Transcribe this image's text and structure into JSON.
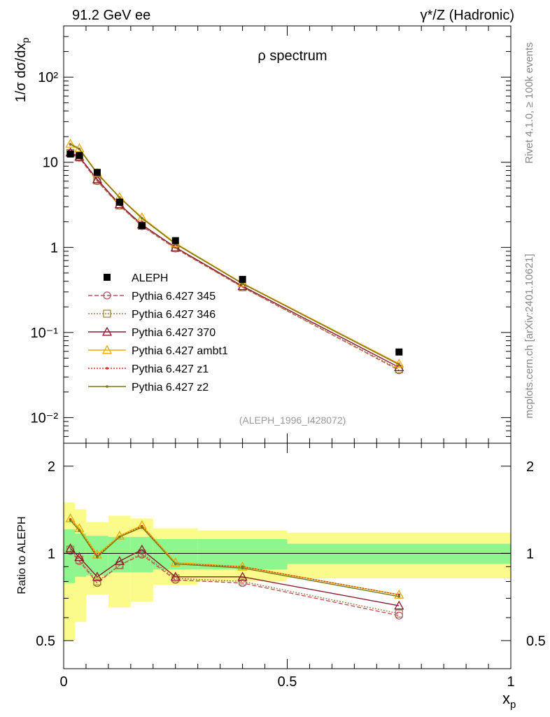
{
  "header": {
    "left": "91.2 GeV ee",
    "right_prefix": "γ*/Z (Hadronic)"
  },
  "side_text": {
    "rivet": "Rivet 4.1.0, ≥ 100k events",
    "mcplots": "mcplots.cern.ch [arXiv:2401.10621]"
  },
  "chart_data": [
    {
      "type": "line",
      "panel": "main",
      "title": "ρ spectrum",
      "ylabel": "1/σ  dσ/dx_p",
      "xlabel": "x_p",
      "yscale": "log",
      "xlim": [
        0,
        1
      ],
      "ylim": [
        0.005,
        400
      ],
      "analysis_tag": "(ALEPH_1996_I428072)",
      "y_ticks": [
        {
          "value": 0.01,
          "label": "10⁻²"
        },
        {
          "value": 0.1,
          "label": "10⁻¹"
        },
        {
          "value": 1,
          "label": "1"
        },
        {
          "value": 10,
          "label": "10"
        },
        {
          "value": 100,
          "label": "10²"
        }
      ],
      "data": {
        "name": "ALEPH",
        "x": [
          0.015,
          0.035,
          0.075,
          0.125,
          0.175,
          0.25,
          0.4,
          0.75
        ],
        "y": [
          12.5,
          12.0,
          7.6,
          3.4,
          1.8,
          1.2,
          0.42,
          0.059
        ]
      },
      "series": [
        {
          "name": "Pythia 6.427 345",
          "color": "#c0505a",
          "dash": "6,3",
          "marker": "circle",
          "x": [
            0.015,
            0.035,
            0.075,
            0.125,
            0.175,
            0.25,
            0.4,
            0.75
          ],
          "y": [
            12.8,
            11.3,
            6.0,
            3.1,
            1.78,
            0.97,
            0.34,
            0.036
          ]
        },
        {
          "name": "Pythia 6.427 346",
          "color": "#a07c3c",
          "dash": "2,2",
          "marker": "square",
          "x": [
            0.015,
            0.035,
            0.075,
            0.125,
            0.175,
            0.25,
            0.4,
            0.75
          ],
          "y": [
            12.9,
            11.4,
            6.1,
            3.1,
            1.8,
            0.98,
            0.34,
            0.037
          ]
        },
        {
          "name": "Pythia 6.427 370",
          "color": "#8b1a2e",
          "dash": "",
          "marker": "triangle",
          "x": [
            0.015,
            0.035,
            0.075,
            0.125,
            0.175,
            0.25,
            0.4,
            0.75
          ],
          "y": [
            13.0,
            11.6,
            6.3,
            3.2,
            1.85,
            1.0,
            0.35,
            0.039
          ]
        },
        {
          "name": "Pythia 6.427 ambt1",
          "color": "#f0a800",
          "dash": "",
          "marker": "triangle",
          "x": [
            0.015,
            0.035,
            0.075,
            0.125,
            0.175,
            0.25,
            0.4,
            0.75
          ],
          "y": [
            16.5,
            14.6,
            7.5,
            3.9,
            2.25,
            1.12,
            0.38,
            0.043
          ]
        },
        {
          "name": "Pythia 6.427 z1",
          "color": "#d83020",
          "dash": "2,2",
          "marker": "dot",
          "x": [
            0.015,
            0.035,
            0.075,
            0.125,
            0.175,
            0.25,
            0.4,
            0.75
          ],
          "y": [
            16.3,
            14.4,
            7.4,
            3.85,
            2.2,
            1.1,
            0.375,
            0.042
          ]
        },
        {
          "name": "Pythia 6.427 z2",
          "color": "#7a7a10",
          "dash": "",
          "marker": "dot",
          "x": [
            0.015,
            0.035,
            0.075,
            0.125,
            0.175,
            0.25,
            0.4,
            0.75
          ],
          "y": [
            16.2,
            14.3,
            7.35,
            3.85,
            2.2,
            1.1,
            0.375,
            0.042
          ]
        }
      ]
    },
    {
      "type": "line",
      "panel": "ratio",
      "ylabel": "Ratio to ALEPH",
      "xlabel": "x_p",
      "xlim": [
        0,
        1
      ],
      "ylim": [
        0.4,
        2.4
      ],
      "y_ticks": [
        {
          "value": 0.5,
          "label": "0.5"
        },
        {
          "value": 1,
          "label": "1"
        },
        {
          "value": 2,
          "label": "2"
        }
      ],
      "x_ticks": [
        {
          "value": 0,
          "label": "0"
        },
        {
          "value": 0.5,
          "label": "0.5"
        },
        {
          "value": 1,
          "label": "1"
        }
      ],
      "bands": {
        "bin_edges": [
          0,
          0.025,
          0.05,
          0.1,
          0.15,
          0.2,
          0.3,
          0.5,
          1.0
        ],
        "inner_lo": [
          0.79,
          0.83,
          0.84,
          0.86,
          0.86,
          0.88,
          0.88,
          0.92
        ],
        "inner_hi": [
          1.21,
          1.17,
          1.15,
          1.14,
          1.14,
          1.12,
          1.12,
          1.08
        ],
        "outer_lo": [
          0.5,
          0.58,
          0.72,
          0.65,
          0.68,
          0.78,
          0.8,
          0.82
        ],
        "outer_hi": [
          1.5,
          1.42,
          1.28,
          1.35,
          1.32,
          1.22,
          1.2,
          1.18
        ]
      },
      "series": [
        {
          "name": "Pythia 6.427 345",
          "x": [
            0.015,
            0.035,
            0.075,
            0.125,
            0.175,
            0.25,
            0.4,
            0.75
          ],
          "y": [
            1.02,
            0.94,
            0.79,
            0.91,
            0.99,
            0.81,
            0.79,
            0.61
          ]
        },
        {
          "name": "Pythia 6.427 346",
          "x": [
            0.015,
            0.035,
            0.075,
            0.125,
            0.175,
            0.25,
            0.4,
            0.75
          ],
          "y": [
            1.03,
            0.95,
            0.8,
            0.91,
            1.0,
            0.82,
            0.8,
            0.62
          ]
        },
        {
          "name": "Pythia 6.427 370",
          "x": [
            0.015,
            0.035,
            0.075,
            0.125,
            0.175,
            0.25,
            0.4,
            0.75
          ],
          "y": [
            1.04,
            0.97,
            0.83,
            0.94,
            1.03,
            0.83,
            0.83,
            0.66
          ]
        },
        {
          "name": "Pythia 6.427 ambt1",
          "x": [
            0.015,
            0.035,
            0.075,
            0.125,
            0.175,
            0.25,
            0.4,
            0.75
          ],
          "y": [
            1.32,
            1.22,
            0.99,
            1.15,
            1.25,
            0.93,
            0.9,
            0.72
          ]
        },
        {
          "name": "Pythia 6.427 z1",
          "x": [
            0.015,
            0.035,
            0.075,
            0.125,
            0.175,
            0.25,
            0.4,
            0.75
          ],
          "y": [
            1.31,
            1.2,
            0.98,
            1.14,
            1.24,
            0.92,
            0.9,
            0.72
          ]
        },
        {
          "name": "Pythia 6.427 z2",
          "x": [
            0.015,
            0.035,
            0.075,
            0.125,
            0.175,
            0.25,
            0.4,
            0.75
          ],
          "y": [
            1.3,
            1.2,
            0.97,
            1.14,
            1.23,
            0.92,
            0.89,
            0.71
          ]
        }
      ]
    }
  ]
}
